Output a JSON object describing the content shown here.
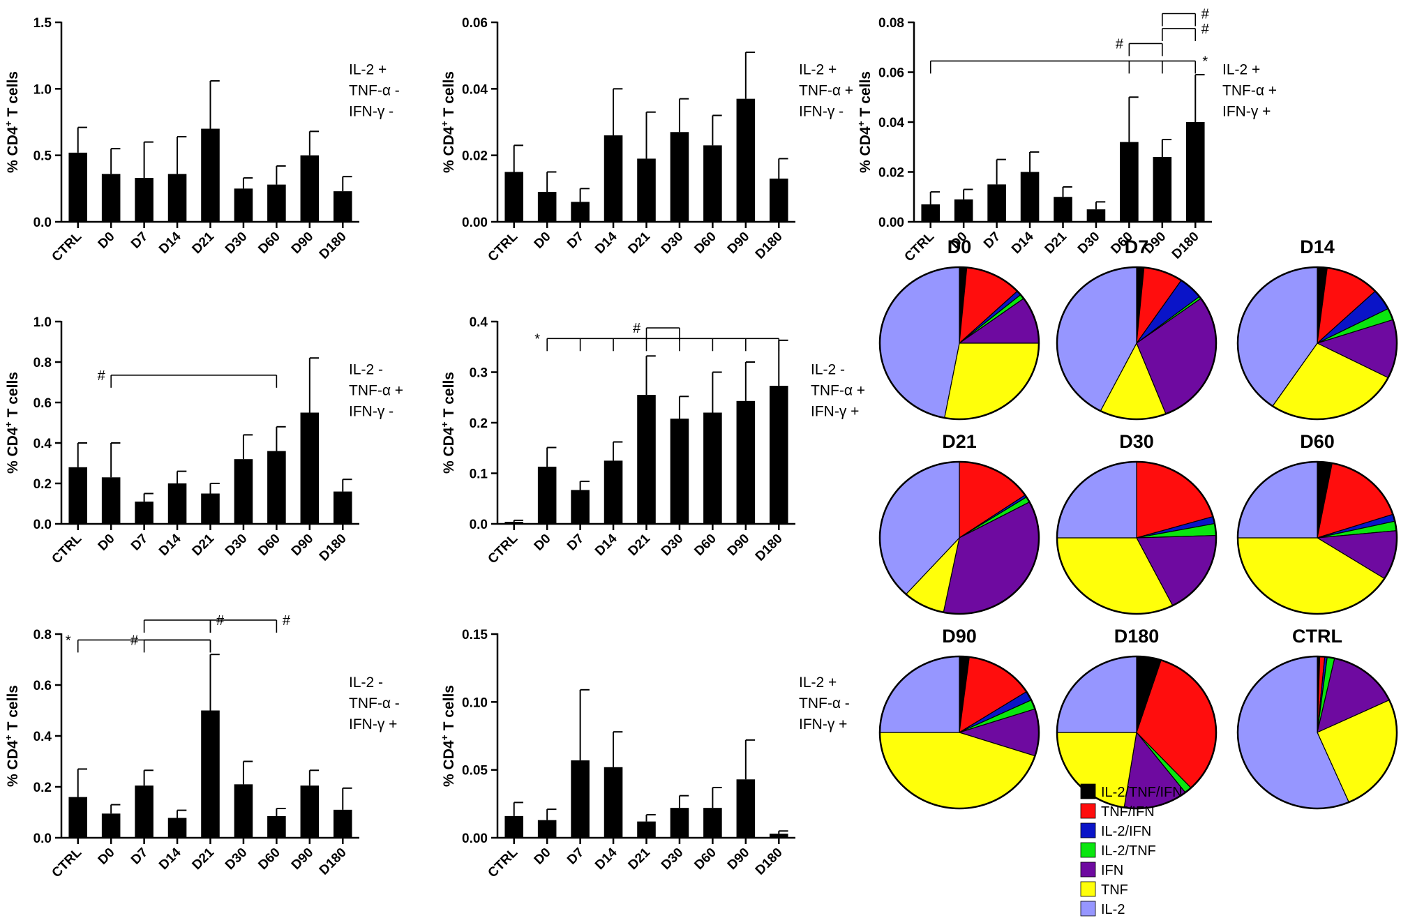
{
  "chart_data": [
    {
      "type": "bar",
      "ylabel": "% CD4+ T cells",
      "condition": [
        "IL-2 +",
        "TNF-α -",
        "IFN-γ -"
      ],
      "categories": [
        "CTRL",
        "D0",
        "D7",
        "D14",
        "D21",
        "D30",
        "D60",
        "D90",
        "D180"
      ],
      "values": [
        0.52,
        0.36,
        0.33,
        0.36,
        0.7,
        0.25,
        0.28,
        0.5,
        0.23
      ],
      "errors": [
        0.19,
        0.19,
        0.27,
        0.28,
        0.36,
        0.08,
        0.14,
        0.18,
        0.11
      ],
      "ylim": [
        0,
        1.5
      ],
      "yticks": [
        "0.0",
        "0.5",
        "1.0",
        "1.5"
      ],
      "yticks_num": [
        0,
        0.5,
        1,
        1.5
      ],
      "significance": []
    },
    {
      "type": "bar",
      "ylabel": "% CD4+ T cells",
      "condition": [
        "IL-2 +",
        "TNF-α +",
        "IFN-γ -"
      ],
      "categories": [
        "CTRL",
        "D0",
        "D7",
        "D14",
        "D21",
        "D30",
        "D60",
        "D90",
        "D180"
      ],
      "values": [
        0.015,
        0.009,
        0.006,
        0.026,
        0.019,
        0.027,
        0.023,
        0.037,
        0.013
      ],
      "errors": [
        0.008,
        0.006,
        0.004,
        0.014,
        0.014,
        0.01,
        0.009,
        0.014,
        0.006
      ],
      "ylim": [
        0,
        0.06
      ],
      "yticks": [
        "0.00",
        "0.02",
        "0.04",
        "0.06"
      ],
      "yticks_num": [
        0,
        0.02,
        0.04,
        0.06
      ],
      "significance": []
    },
    {
      "type": "bar",
      "ylabel": "% CD4+ T cells",
      "condition": [
        "IL-2 +",
        "TNF-α +",
        "IFN-γ +"
      ],
      "categories": [
        "CTRL",
        "D0",
        "D7",
        "D14",
        "D21",
        "D30",
        "D60",
        "D90",
        "D180"
      ],
      "values": [
        0.007,
        0.009,
        0.015,
        0.02,
        0.01,
        0.005,
        0.032,
        0.026,
        0.04
      ],
      "errors": [
        0.005,
        0.004,
        0.01,
        0.008,
        0.004,
        0.003,
        0.018,
        0.007,
        0.019
      ],
      "ylim": [
        0,
        0.08
      ],
      "yticks": [
        "0.00",
        "0.02",
        "0.04",
        "0.06",
        "0.08"
      ],
      "yticks_num": [
        0,
        0.02,
        0.04,
        0.06,
        0.08
      ],
      "significance": [
        {
          "symbol": "#",
          "y": 0.0835,
          "ref": "D90",
          "others": [
            "D180"
          ]
        },
        {
          "symbol": "#",
          "y": 0.0775,
          "ref": "D90",
          "others": [
            "D180"
          ]
        },
        {
          "symbol": "#",
          "y": 0.0715,
          "ref": "D90",
          "others": [
            "D60"
          ]
        },
        {
          "symbol": "*",
          "y": 0.0645,
          "ref": "CTRL",
          "others": [
            "D60",
            "D90",
            "D180"
          ]
        }
      ]
    },
    {
      "type": "bar",
      "ylabel": "% CD4+ T cells",
      "condition": [
        "IL-2 -",
        "TNF-α +",
        "IFN-γ -"
      ],
      "categories": [
        "CTRL",
        "D0",
        "D7",
        "D14",
        "D21",
        "D30",
        "D60",
        "D90",
        "D180"
      ],
      "values": [
        0.28,
        0.23,
        0.11,
        0.2,
        0.15,
        0.32,
        0.36,
        0.55,
        0.16
      ],
      "errors": [
        0.12,
        0.17,
        0.04,
        0.06,
        0.05,
        0.12,
        0.12,
        0.27,
        0.06
      ],
      "ylim": [
        0,
        1.0
      ],
      "yticks": [
        "0.0",
        "0.2",
        "0.4",
        "0.6",
        "0.8",
        "1.0"
      ],
      "yticks_num": [
        0,
        0.2,
        0.4,
        0.6,
        0.8,
        1.0
      ],
      "significance": [
        {
          "symbol": "#",
          "y": 0.735,
          "ref": "D60",
          "others": [
            "D0"
          ]
        }
      ]
    },
    {
      "type": "bar",
      "ylabel": "% CD4+ T cells",
      "condition": [
        "IL-2 -",
        "TNF-α +",
        "IFN-γ +"
      ],
      "categories": [
        "CTRL",
        "D0",
        "D7",
        "D14",
        "D21",
        "D30",
        "D60",
        "D90",
        "D180"
      ],
      "values": [
        0.004,
        0.113,
        0.067,
        0.125,
        0.255,
        0.208,
        0.22,
        0.243,
        0.273
      ],
      "errors": [
        0.003,
        0.038,
        0.017,
        0.037,
        0.077,
        0.044,
        0.08,
        0.077,
        0.09
      ],
      "ylim": [
        0,
        0.4
      ],
      "yticks": [
        "0.0",
        "0.1",
        "0.2",
        "0.3",
        "0.4"
      ],
      "yticks_num": [
        0,
        0.1,
        0.2,
        0.3,
        0.4
      ],
      "significance": [
        {
          "symbol": "#",
          "y": 0.3875,
          "ref": "D30",
          "others": [
            "D21"
          ]
        },
        {
          "symbol": "*",
          "y": 0.3665,
          "ref": "D180",
          "others": [
            "D0",
            "D7",
            "D14",
            "D21",
            "D30",
            "D60",
            "D90"
          ]
        }
      ]
    },
    {
      "type": "bar",
      "ylabel": "% CD4+ T cells",
      "condition": [
        "IL-2 +",
        "TNF-α -",
        "IFN-γ +"
      ],
      "categories": [
        "CTRL",
        "D0",
        "D7",
        "D14",
        "D21",
        "D30",
        "D60",
        "D90",
        "D180"
      ],
      "values": [
        0.016,
        0.013,
        0.057,
        0.052,
        0.012,
        0.022,
        0.022,
        0.043,
        0.003
      ],
      "errors": [
        0.01,
        0.008,
        0.052,
        0.026,
        0.005,
        0.009,
        0.015,
        0.029,
        0.002
      ],
      "ylim": [
        0,
        0.15
      ],
      "yticks": [
        "0.00",
        "0.05",
        "0.10",
        "0.15"
      ],
      "yticks_num": [
        0,
        0.05,
        0.1,
        0.15
      ],
      "significance": []
    },
    {
      "type": "bar",
      "ylabel": "% CD4+ T cells",
      "condition": [
        "IL-2 -",
        "TNF-α -",
        "IFN-γ +"
      ],
      "categories": [
        "CTRL",
        "D0",
        "D7",
        "D14",
        "D21",
        "D30",
        "D60",
        "D90",
        "D180"
      ],
      "values": [
        0.16,
        0.095,
        0.205,
        0.078,
        0.5,
        0.21,
        0.085,
        0.205,
        0.11
      ],
      "errors": [
        0.11,
        0.035,
        0.06,
        0.03,
        0.22,
        0.09,
        0.03,
        0.06,
        0.085
      ],
      "ylim": [
        0,
        0.8
      ],
      "yticks": [
        "0.0",
        "0.2",
        "0.4",
        "0.6",
        "0.8"
      ],
      "yticks_num": [
        0,
        0.2,
        0.4,
        0.6,
        0.8
      ],
      "significance": [
        {
          "symbol": "#",
          "y": 0.855,
          "ref": "D7",
          "others": [
            "D21"
          ]
        },
        {
          "symbol": "#",
          "y": 0.855,
          "ref": "D21",
          "others": [
            "D60"
          ]
        },
        {
          "symbol": "#",
          "y": 0.777,
          "ref": "D21",
          "others": [
            "D7"
          ]
        },
        {
          "symbol": "*",
          "y": 0.777,
          "ref": "D21",
          "others": [
            "CTRL"
          ]
        }
      ]
    },
    {
      "type": "pie",
      "title": "D0",
      "fractions": [
        0.015,
        0.115,
        0.01,
        0.01,
        0.1,
        0.28,
        0.47
      ]
    },
    {
      "type": "pie",
      "title": "D7",
      "fractions": [
        0.015,
        0.08,
        0.05,
        0.005,
        0.29,
        0.135,
        0.425
      ]
    },
    {
      "type": "pie",
      "title": "D14",
      "fractions": [
        0.02,
        0.11,
        0.045,
        0.025,
        0.125,
        0.27,
        0.405
      ]
    },
    {
      "type": "pie",
      "title": "D21",
      "fractions": [
        0.0,
        0.155,
        0.005,
        0.012,
        0.36,
        0.085,
        0.383
      ]
    },
    {
      "type": "pie",
      "title": "D30",
      "fractions": [
        0.0,
        0.205,
        0.015,
        0.025,
        0.18,
        0.325,
        0.25
      ]
    },
    {
      "type": "pie",
      "title": "D60",
      "fractions": [
        0.03,
        0.17,
        0.015,
        0.02,
        0.105,
        0.41,
        0.25
      ]
    },
    {
      "type": "pie",
      "title": "D90",
      "fractions": [
        0.02,
        0.14,
        0.02,
        0.02,
        0.1,
        0.45,
        0.25
      ]
    },
    {
      "type": "pie",
      "title": "D180",
      "fractions": [
        0.05,
        0.33,
        0.0,
        0.015,
        0.13,
        0.225,
        0.25
      ]
    },
    {
      "type": "pie",
      "title": "CTRL",
      "fractions": [
        0.005,
        0.01,
        0.005,
        0.015,
        0.145,
        0.255,
        0.565
      ]
    }
  ],
  "legend": {
    "labels": [
      "IL-2/TNF/IFN",
      "TNF/IFN",
      "IL-2/IFN",
      "IL-2/TNF",
      "IFN",
      "TNF",
      "IL-2"
    ],
    "colors": [
      "#000000",
      "#ff0d0d",
      "#0a14c8",
      "#0ae60f",
      "#6e0aa0",
      "#ffff0a",
      "#9696ff"
    ]
  }
}
